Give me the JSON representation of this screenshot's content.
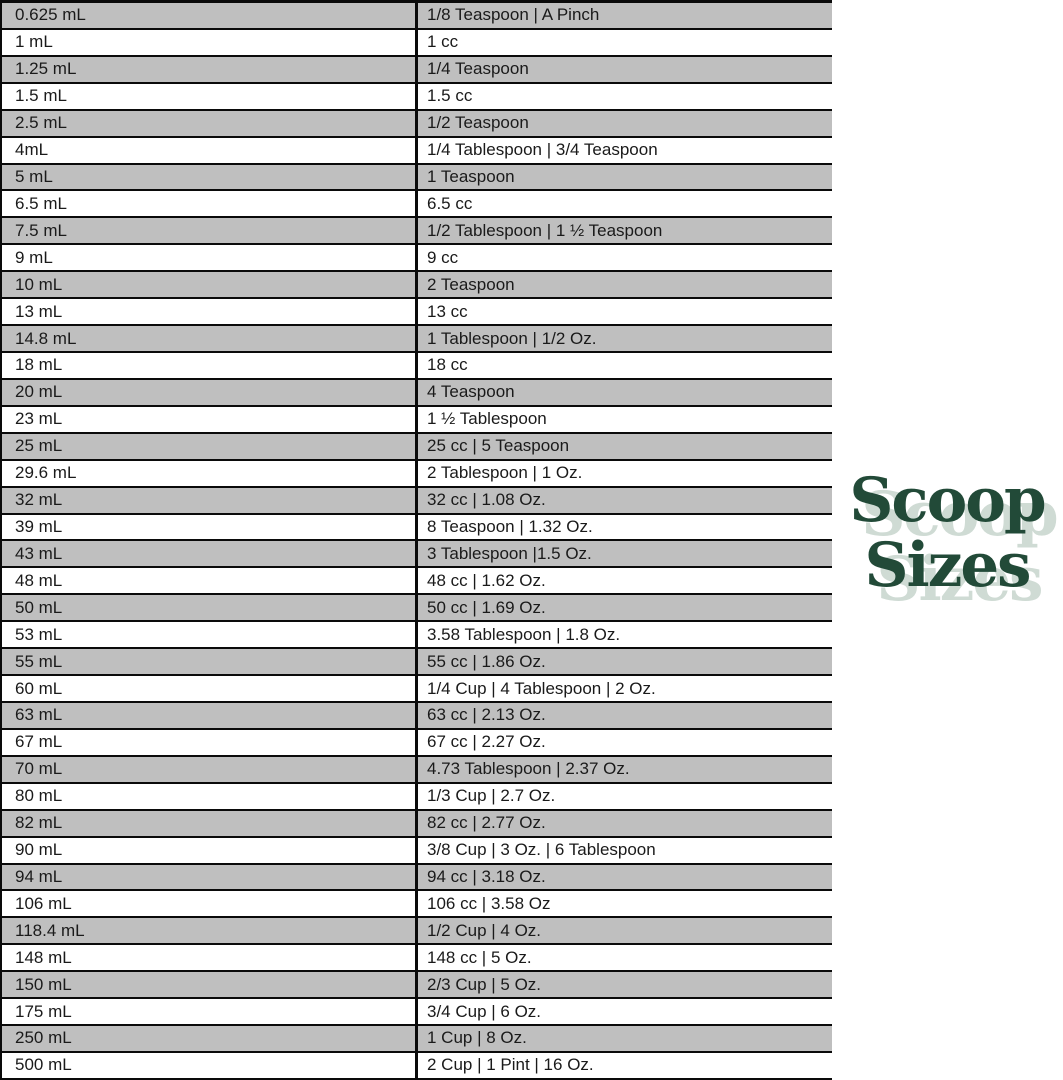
{
  "logo": {
    "line1": "Scoop",
    "line2": "Sizes"
  },
  "colors": {
    "row_alt": "#bfbfbf",
    "border": "#0a0a0a",
    "logo_green": "#224a38",
    "logo_shadow": "#cfdbd4"
  },
  "chart_data": {
    "type": "table",
    "title": "Scoop Sizes",
    "layout": {
      "grid": true,
      "alternating_rows": "odd rows gray, even rows white",
      "header_row": false
    },
    "rows": [
      {
        "ml": "0.625 mL",
        "conversion": "1/8 Teaspoon | A Pinch"
      },
      {
        "ml": "1 mL",
        "conversion": "1 cc"
      },
      {
        "ml": "1.25 mL",
        "conversion": "1/4 Teaspoon"
      },
      {
        "ml": "1.5 mL",
        "conversion": "1.5 cc"
      },
      {
        "ml": "2.5 mL",
        "conversion": "1/2 Teaspoon"
      },
      {
        "ml": "4mL",
        "conversion": "1/4 Tablespoon | 3/4 Teaspoon"
      },
      {
        "ml": "5 mL",
        "conversion": "1 Teaspoon"
      },
      {
        "ml": "6.5 mL",
        "conversion": "6.5 cc"
      },
      {
        "ml": "7.5 mL",
        "conversion": "1/2 Tablespoon | 1 ½ Teaspoon"
      },
      {
        "ml": "9 mL",
        "conversion": "9 cc"
      },
      {
        "ml": "10 mL",
        "conversion": "2 Teaspoon"
      },
      {
        "ml": "13 mL",
        "conversion": "13 cc"
      },
      {
        "ml": "14.8 mL",
        "conversion": "1 Tablespoon | 1/2 Oz."
      },
      {
        "ml": "18 mL",
        "conversion": "18 cc"
      },
      {
        "ml": "20 mL",
        "conversion": "4 Teaspoon"
      },
      {
        "ml": "23 mL",
        "conversion": "1 ½ Tablespoon"
      },
      {
        "ml": "25 mL",
        "conversion": "25 cc | 5 Teaspoon"
      },
      {
        "ml": "29.6 mL",
        "conversion": "2 Tablespoon | 1 Oz."
      },
      {
        "ml": "32 mL",
        "conversion": "32 cc | 1.08 Oz."
      },
      {
        "ml": "39 mL",
        "conversion": "8 Teaspoon | 1.32 Oz."
      },
      {
        "ml": "43 mL",
        "conversion": "3 Tablespoon |1.5 Oz."
      },
      {
        "ml": "48 mL",
        "conversion": "48 cc | 1.62 Oz."
      },
      {
        "ml": "50 mL",
        "conversion": "50 cc | 1.69 Oz."
      },
      {
        "ml": "53 mL",
        "conversion": "3.58 Tablespoon | 1.8 Oz."
      },
      {
        "ml": "55 mL",
        "conversion": "55 cc | 1.86 Oz."
      },
      {
        "ml": "60 mL",
        "conversion": "1/4 Cup | 4 Tablespoon | 2 Oz."
      },
      {
        "ml": "63 mL",
        "conversion": "63 cc | 2.13 Oz."
      },
      {
        "ml": "67 mL",
        "conversion": "67 cc | 2.27 Oz."
      },
      {
        "ml": "70 mL",
        "conversion": "4.73 Tablespoon | 2.37 Oz."
      },
      {
        "ml": "80 mL",
        "conversion": "1/3 Cup | 2.7 Oz."
      },
      {
        "ml": "82 mL",
        "conversion": "82 cc | 2.77 Oz."
      },
      {
        "ml": "90 mL",
        "conversion": "3/8 Cup | 3 Oz. | 6 Tablespoon"
      },
      {
        "ml": "94 mL",
        "conversion": "94 cc | 3.18 Oz."
      },
      {
        "ml": "106 mL",
        "conversion": "106 cc | 3.58 Oz"
      },
      {
        "ml": "118.4 mL",
        "conversion": "1/2 Cup | 4 Oz."
      },
      {
        "ml": "148 mL",
        "conversion": "148 cc | 5 Oz."
      },
      {
        "ml": "150 mL",
        "conversion": "2/3 Cup | 5 Oz."
      },
      {
        "ml": "175 mL",
        "conversion": "3/4 Cup | 6 Oz."
      },
      {
        "ml": "250 mL",
        "conversion": "1 Cup | 8 Oz."
      },
      {
        "ml": "500 mL",
        "conversion": "2 Cup | 1 Pint | 16 Oz."
      }
    ]
  }
}
